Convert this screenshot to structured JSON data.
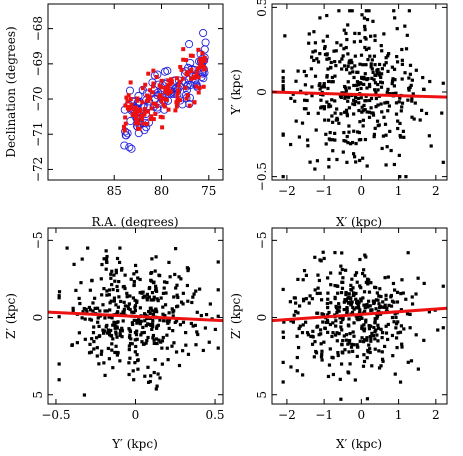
{
  "colors": {
    "red": "#ee1111",
    "blue": "#2222dd",
    "black": "#000000"
  },
  "chart_data": [
    {
      "id": "p1",
      "type": "scatter",
      "xlabel": "R.A. (degrees)",
      "ylabel": "Declination (degrees)",
      "xlim": [
        92,
        73.5
      ],
      "ylim": [
        -72.3,
        -67.3
      ],
      "x_ticks": [
        85,
        80,
        75
      ],
      "y_ticks": [
        -72,
        -71,
        -70,
        -69,
        -68
      ],
      "x_tick_labels": [
        "85",
        "80",
        "75"
      ],
      "y_tick_labels": [
        "−72",
        "−71",
        "−70",
        "−69",
        "−68"
      ],
      "grid": false,
      "series": [
        {
          "marker": "open-circle",
          "color": "#2222dd",
          "n_points": 130,
          "trend": {
            "x_range": [
              84,
              75.3
            ],
            "y_at_x0": -70.7,
            "slope": 0.195,
            "scatter": 0.35
          }
        },
        {
          "marker": "filled-square",
          "color": "#ee1111",
          "n_points": 160,
          "trend": {
            "x_range": [
              84,
              75.3
            ],
            "y_at_x0": -70.7,
            "slope": 0.195,
            "scatter": 0.4
          }
        }
      ]
    },
    {
      "id": "p2",
      "type": "scatter",
      "xlabel": "X′ (kpc)",
      "ylabel": "Y′ (kpc)",
      "xlim": [
        -2.4,
        2.3
      ],
      "ylim": [
        -0.52,
        0.52
      ],
      "x_ticks": [
        -2,
        -1,
        0,
        1,
        2
      ],
      "y_ticks": [
        -0.5,
        0,
        0.5
      ],
      "x_tick_labels": [
        "−2",
        "−1",
        "0",
        "1",
        "2"
      ],
      "y_tick_labels": [
        "−0.5",
        "0",
        "0.5"
      ],
      "grid": false,
      "series": [
        {
          "marker": "filled-square",
          "color": "#000000",
          "n_points": 420,
          "spread": {
            "x_center": -0.2,
            "x_sd": 0.9,
            "x_range": [
              -2.1,
              2.2
            ],
            "y_sd": 0.2,
            "y_range": [
              -0.5,
              0.48
            ]
          }
        }
      ],
      "fit_line": {
        "color": "#ee1111",
        "points": [
          [
            -2.4,
            0.0
          ],
          [
            2.3,
            -0.03
          ]
        ]
      }
    },
    {
      "id": "p3",
      "type": "scatter",
      "xlabel": "Y′ (kpc)",
      "ylabel": "Z′ (kpc)",
      "xlim": [
        -0.55,
        0.55
      ],
      "ylim": [
        5.6,
        -5.8
      ],
      "x_ticks": [
        -0.5,
        0,
        0.5
      ],
      "y_ticks": [
        -5,
        0,
        5
      ],
      "x_tick_labels": [
        "−0.5",
        "0",
        "0.5"
      ],
      "y_tick_labels": [
        "−5",
        "0",
        "5"
      ],
      "grid": false,
      "series": [
        {
          "marker": "filled-square",
          "color": "#000000",
          "n_points": 420,
          "spread": {
            "x_center": 0.0,
            "x_sd": 0.2,
            "x_range": [
              -0.48,
              0.52
            ],
            "y_sd": 1.8,
            "y_range": [
              -4.5,
              5.3
            ]
          }
        }
      ],
      "fit_line": {
        "color": "#ee1111",
        "points": [
          [
            -0.55,
            -0.35
          ],
          [
            0.55,
            0.2
          ]
        ]
      }
    },
    {
      "id": "p4",
      "type": "scatter",
      "xlabel": "X′ (kpc)",
      "ylabel": "Z′ (kpc)",
      "xlim": [
        -2.4,
        2.3
      ],
      "ylim": [
        5.6,
        -5.8
      ],
      "x_ticks": [
        -2,
        -1,
        0,
        1,
        2
      ],
      "y_ticks": [
        -5,
        0,
        5
      ],
      "x_tick_labels": [
        "−2",
        "−1",
        "0",
        "1",
        "2"
      ],
      "y_tick_labels": [
        "−5",
        "0",
        "5"
      ],
      "grid": false,
      "series": [
        {
          "marker": "filled-square",
          "color": "#000000",
          "n_points": 420,
          "spread": {
            "x_center": -0.2,
            "x_sd": 0.9,
            "x_range": [
              -2.1,
              2.2
            ],
            "y_sd": 1.8,
            "y_range": [
              -5.0,
              5.3
            ]
          }
        }
      ],
      "fit_line": {
        "color": "#ee1111",
        "points": [
          [
            -2.4,
            0.2
          ],
          [
            2.3,
            -0.6
          ]
        ]
      }
    }
  ]
}
